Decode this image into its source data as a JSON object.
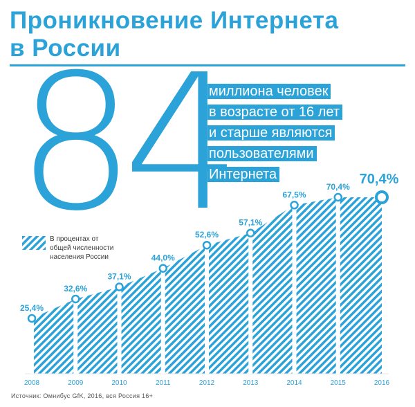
{
  "title": {
    "line1": "Проникновение Интернета",
    "line2": "в России"
  },
  "highlight": {
    "big_number": "84",
    "lines": [
      "миллиона человек",
      "в возрасте от 16 лет",
      "и старше являются",
      "пользователями",
      "Интернета"
    ]
  },
  "legend": {
    "lines": [
      "В процентах от",
      "общей численности",
      "населения России"
    ]
  },
  "source": "Источник: Омнибус GfK, 2016, вся Россия 16+",
  "colors": {
    "accent": "#2ba3d8",
    "text": "#3a3a3a"
  },
  "chart_data": {
    "type": "area",
    "x": [
      "2008",
      "2009",
      "2010",
      "2011",
      "2012",
      "2013",
      "2014",
      "2015",
      "2016"
    ],
    "values": [
      25.4,
      32.6,
      37.1,
      44.0,
      52.6,
      57.1,
      67.5,
      70.4,
      70.4
    ],
    "labels": [
      "25,4%",
      "32,6%",
      "37,1%",
      "44,0%",
      "52,6%",
      "57,1%",
      "67,5%",
      "70,4%",
      "70,4%"
    ],
    "unit": "%",
    "fill": "diagonal-hatch",
    "highlight_last": true,
    "grid": false
  }
}
